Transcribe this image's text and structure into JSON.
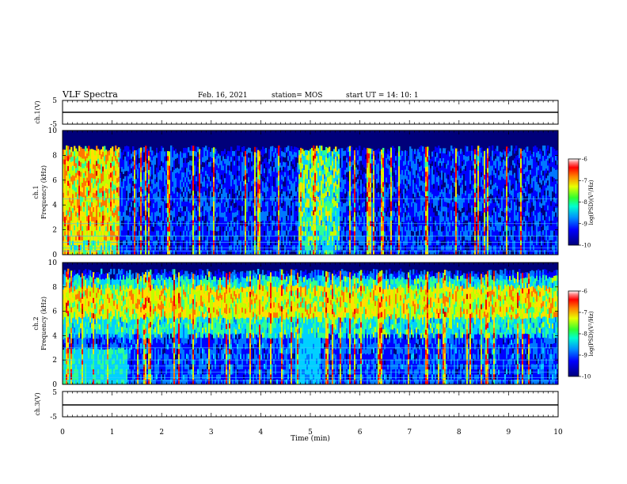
{
  "header": {
    "title": "VLF Spectra",
    "date": "Feb. 16, 2021",
    "station": "station= MOS",
    "start": "start  UT  =   14: 10: 1"
  },
  "colors": {
    "spectro": [
      "#00007a",
      "#0000ff",
      "#0078ff",
      "#00d0ff",
      "#30ff90",
      "#c0ff00",
      "#ffe000",
      "#ff7800",
      "#ff0000",
      "#c80000"
    ],
    "trace": "#000000"
  },
  "chart_data": [
    {
      "type": "line",
      "panel": "ch1",
      "ylabel": "ch.1(V)",
      "ylim": [
        -5,
        5
      ],
      "yticks": [
        "5",
        "-5"
      ],
      "x": [
        0,
        10
      ],
      "y": [
        0,
        0
      ]
    },
    {
      "type": "heatmap",
      "panel": "ch1-spectrogram",
      "ylabel_top": "ch.1",
      "ylabel": "Frequency (kHz)",
      "yticks": [
        "0",
        "2",
        "4",
        "6",
        "8",
        "10"
      ],
      "ylim": [
        0,
        10
      ],
      "xlim": [
        0,
        10
      ],
      "colorbar": {
        "label": "log(PSD)(V²/Hz)",
        "ticks": [
          "-6",
          "-7",
          "-8",
          "-9",
          "-10"
        ],
        "range": [
          -10,
          -6
        ]
      },
      "bursts": [
        {
          "t0": 0.0,
          "t1": 1.15,
          "fmax": 8.6,
          "level": -7.5
        },
        {
          "t0": 4.75,
          "t1": 5.6,
          "fmax": 8.6,
          "level": -8.2
        }
      ],
      "background": {
        "fmax": 8.8,
        "level": -9.3
      },
      "floor_lines_khz": [
        0.3,
        0.55,
        1.0,
        1.5,
        2.5,
        4.5
      ]
    },
    {
      "type": "heatmap",
      "panel": "ch2-spectrogram",
      "ylabel_top": "ch.2",
      "ylabel": "Frequency (kHz)",
      "yticks": [
        "0",
        "2",
        "4",
        "6",
        "8",
        "10"
      ],
      "ylim": [
        0,
        10
      ],
      "xlim": [
        0,
        10
      ],
      "colorbar": {
        "label": "log(PSD)(V²/Hz)",
        "ticks": [
          "-6",
          "-7",
          "-8",
          "-9",
          "-10"
        ],
        "range": [
          -10,
          -6
        ]
      },
      "band": {
        "f0": 5.5,
        "f1": 8.0,
        "level": -7.6
      },
      "background": {
        "fmax": 9.5,
        "level": -9.2
      },
      "floor_lines_khz": [
        0.3,
        0.55,
        1.0,
        1.5,
        2.0,
        3.0
      ]
    },
    {
      "type": "line",
      "panel": "ch3",
      "ylabel": "ch.3(V)",
      "ylim": [
        -5,
        5
      ],
      "yticks": [
        "5",
        "-5"
      ],
      "xlabel": "Time  (min)",
      "xticks": [
        "0",
        "1",
        "2",
        "3",
        "4",
        "5",
        "6",
        "7",
        "8",
        "9",
        "10"
      ],
      "x": [
        0,
        10
      ],
      "y": [
        0,
        0
      ]
    }
  ]
}
